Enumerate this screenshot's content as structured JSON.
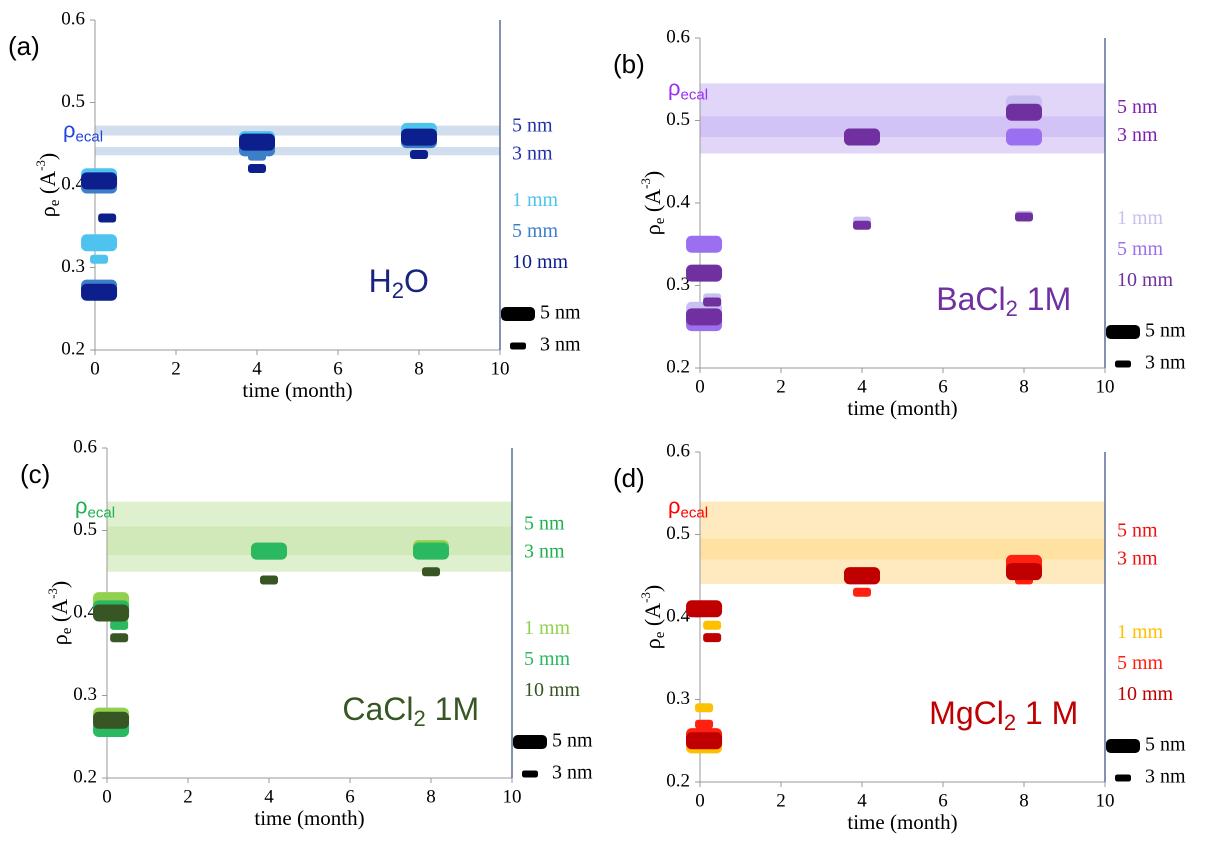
{
  "chart_data": [
    {
      "type": "marker",
      "panel_label": "(a)",
      "xlabel": "time (month)",
      "ylabel": {
        "symbol": "ρ",
        "sub": "e",
        "text": " (A",
        "sup": "-3",
        "end": ")"
      },
      "sample_label": {
        "text": "H",
        "sub": "2",
        "end": "O"
      },
      "sample_color": "#1a237e",
      "ecal_label": {
        "symbol": "ρ",
        "sub": "ecal"
      },
      "ecal_color": "#2244dd",
      "band_color": "#a9c2de",
      "bands": [
        {
          "label": "5 nm",
          "lo": 0.46,
          "hi": 0.472
        },
        {
          "label": "3 nm",
          "lo": 0.436,
          "hi": 0.446
        }
      ],
      "band_label_color": "#2233aa",
      "xlim": [
        0,
        10
      ],
      "xticks": [
        0,
        2,
        4,
        6,
        8,
        10
      ],
      "ylim": [
        0.2,
        0.6
      ],
      "yticks": [
        0.2,
        0.3,
        0.4,
        0.5,
        0.6
      ],
      "series": [
        {
          "name": "1 mm",
          "color": "#4fc3f0",
          "large": {
            "x": [
              0.1,
              0.1,
              4,
              8
            ],
            "values": [
              0.33,
              0.41,
              0.455,
              0.465
            ]
          },
          "small": {
            "x": [
              0.1
            ],
            "values": [
              0.31
            ]
          }
        },
        {
          "name": "5 mm",
          "color": "#3a7fc8",
          "large": {
            "x": [
              0.1,
              0.1,
              4,
              8
            ],
            "values": [
              0.275,
              0.4,
              0.445,
              0.455
            ]
          },
          "small": {
            "x": [
              4
            ],
            "values": [
              0.435
            ]
          }
        },
        {
          "name": "10 mm",
          "color": "#0d1f8c",
          "large": {
            "x": [
              0.1,
              0.1,
              4,
              8
            ],
            "values": [
              0.27,
              0.405,
              0.452,
              0.458
            ]
          },
          "small": {
            "x": [
              0.3,
              4,
              8
            ],
            "values": [
              0.36,
              0.42,
              0.437
            ]
          }
        }
      ],
      "size_legend": [
        "5 nm",
        "3 nm"
      ]
    },
    {
      "type": "marker",
      "panel_label": "(b)",
      "xlabel": "time (month)",
      "ylabel": {
        "symbol": "ρ",
        "sub": "e",
        "text": " (A",
        "sup": "-3",
        "end": ")"
      },
      "sample_label": {
        "text": "BaCl",
        "sub": "2",
        "end": " 1M"
      },
      "sample_color": "#7030a0",
      "ecal_label": {
        "symbol": "ρ",
        "sub": "ecal"
      },
      "ecal_color": "#9b30f0",
      "band_color": "#c9b2f2",
      "bands": [
        {
          "label": "5 nm",
          "lo": 0.46,
          "hi": 0.545
        },
        {
          "label": "3 nm",
          "lo": 0.48,
          "hi": 0.505
        }
      ],
      "band_label_color": "#8020b0",
      "xlim": [
        0,
        10
      ],
      "xticks": [
        0,
        2,
        4,
        6,
        8,
        10
      ],
      "ylim": [
        0.2,
        0.6
      ],
      "yticks": [
        0.2,
        0.3,
        0.4,
        0.5,
        0.6
      ],
      "series": [
        {
          "name": "1 mm",
          "color": "#c8c0f0",
          "large": {
            "x": [
              0.1,
              4,
              8
            ],
            "values": [
              0.27,
              0.48,
              0.52
            ]
          },
          "small": {
            "x": [
              0.3,
              4,
              8
            ],
            "values": [
              0.285,
              0.378,
              0.385
            ]
          }
        },
        {
          "name": "5 mm",
          "color": "#9b6ff0",
          "large": {
            "x": [
              0.1,
              0.1,
              4,
              8
            ],
            "values": [
              0.255,
              0.35,
              0.48,
              0.48
            ]
          },
          "small": {
            "x": [
              0.3
            ],
            "values": [
              0.28
            ]
          }
        },
        {
          "name": "10 mm",
          "color": "#7030a0",
          "large": {
            "x": [
              0.1,
              0.1,
              4,
              8
            ],
            "values": [
              0.262,
              0.315,
              0.48,
              0.51
            ]
          },
          "small": {
            "x": [
              0.3,
              4,
              8
            ],
            "values": [
              0.28,
              0.373,
              0.383
            ]
          }
        }
      ],
      "size_legend": [
        "5 nm",
        "3 nm"
      ]
    },
    {
      "type": "marker",
      "panel_label": "(c)",
      "xlabel": "time (month)",
      "ylabel": {
        "symbol": "ρ",
        "sub": "e",
        "text": " (A",
        "sup": "-3",
        "end": ")"
      },
      "sample_label": {
        "text": "CaCl",
        "sub": "2",
        "end": " 1M"
      },
      "sample_color": "#375623",
      "ecal_label": {
        "symbol": "ρ",
        "sub": "ecal"
      },
      "ecal_color": "#20b050",
      "band_color": "#c5e3a8",
      "bands": [
        {
          "label": "5 nm",
          "lo": 0.45,
          "hi": 0.535
        },
        {
          "label": "3 nm",
          "lo": 0.47,
          "hi": 0.505
        }
      ],
      "band_label_color": "#20b050",
      "xlim": [
        0,
        10
      ],
      "xticks": [
        0,
        2,
        4,
        6,
        8,
        10
      ],
      "ylim": [
        0.2,
        0.6
      ],
      "yticks": [
        0.2,
        0.3,
        0.4,
        0.5,
        0.6
      ],
      "series": [
        {
          "name": "1 mm",
          "color": "#92d050",
          "large": {
            "x": [
              0.1,
              0.1,
              4,
              8
            ],
            "values": [
              0.275,
              0.415,
              0.475,
              0.478
            ]
          },
          "small": {
            "x": [
              0.3
            ],
            "values": [
              0.39
            ]
          }
        },
        {
          "name": "5 mm",
          "color": "#2ab860",
          "large": {
            "x": [
              0.1,
              0.1,
              4,
              8
            ],
            "values": [
              0.26,
              0.405,
              0.475,
              0.475
            ]
          },
          "small": {
            "x": [
              0.3
            ],
            "values": [
              0.385
            ]
          }
        },
        {
          "name": "10 mm",
          "color": "#375623",
          "large": {
            "x": [
              0.1,
              0.1
            ],
            "values": [
              0.27,
              0.4
            ]
          },
          "small": {
            "x": [
              0.3,
              4,
              8
            ],
            "values": [
              0.37,
              0.44,
              0.45
            ]
          }
        }
      ],
      "size_legend": [
        "5 nm",
        "3 nm"
      ]
    },
    {
      "type": "marker",
      "panel_label": "(d)",
      "xlabel": "time (month)",
      "ylabel": {
        "symbol": "ρ",
        "sub": "e",
        "text": " (A",
        "sup": "-3",
        "end": ")"
      },
      "sample_label": {
        "text": "MgCl",
        "sub": "2",
        "end": " 1 M"
      },
      "sample_color": "#c00000",
      "ecal_label": {
        "symbol": "ρ",
        "sub": "ecal"
      },
      "ecal_color": "#ff0000",
      "band_color": "#ffd98a",
      "bands": [
        {
          "label": "5 nm",
          "lo": 0.44,
          "hi": 0.54
        },
        {
          "label": "3 nm",
          "lo": 0.47,
          "hi": 0.495
        }
      ],
      "band_label_color": "#ee1111",
      "xlim": [
        0,
        10
      ],
      "xticks": [
        0,
        2,
        4,
        6,
        8,
        10
      ],
      "ylim": [
        0.2,
        0.6
      ],
      "yticks": [
        0.2,
        0.3,
        0.4,
        0.5,
        0.6
      ],
      "series": [
        {
          "name": "1 mm",
          "color": "#ffc000",
          "large": {
            "x": [
              0.1,
              4,
              8
            ],
            "values": [
              0.245,
              0.45,
              0.46
            ]
          },
          "small": {
            "x": [
              0.3,
              0.1
            ],
            "values": [
              0.39,
              0.29
            ]
          }
        },
        {
          "name": "5 mm",
          "color": "#ff2010",
          "large": {
            "x": [
              0.1,
              4,
              8
            ],
            "values": [
              0.255,
              0.45,
              0.465
            ]
          },
          "small": {
            "x": [
              0.1,
              4,
              8
            ],
            "values": [
              0.27,
              0.43,
              0.445
            ]
          }
        },
        {
          "name": "10 mm",
          "color": "#c00000",
          "large": {
            "x": [
              0.1,
              0.1,
              4,
              8
            ],
            "values": [
              0.25,
              0.41,
              0.45,
              0.455
            ]
          },
          "small": {
            "x": [
              0.3
            ],
            "values": [
              0.375
            ]
          }
        }
      ],
      "size_legend": [
        "5 nm",
        "3 nm"
      ]
    }
  ]
}
